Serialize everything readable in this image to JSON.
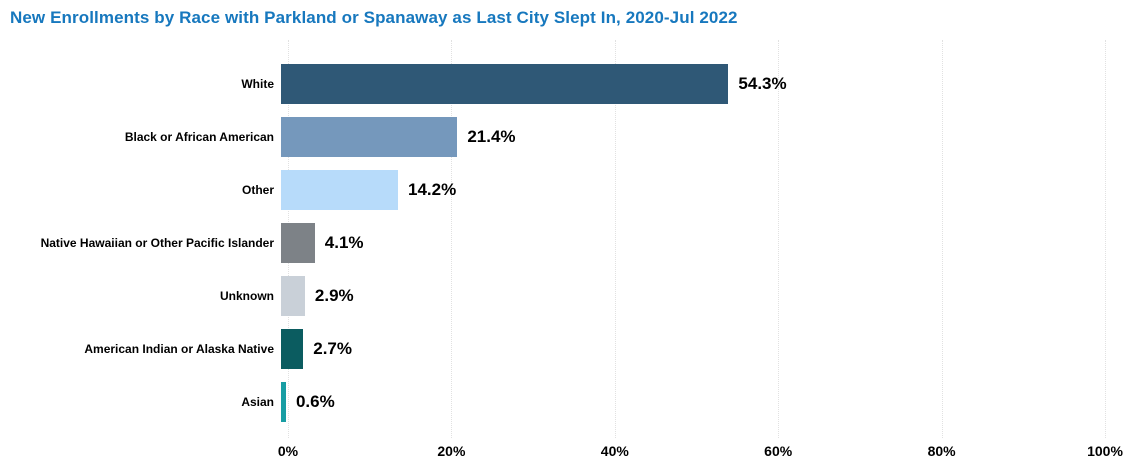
{
  "title": "New Enrollments by Race with Parkland or Spanaway as Last City Slept In, 2020-Jul 2022",
  "title_color": "#1778be",
  "chart_data": {
    "type": "bar",
    "orientation": "horizontal",
    "title": "New Enrollments by Race with Parkland or Spanaway as Last City Slept In, 2020-Jul 2022",
    "categories": [
      "White",
      "Black or African American",
      "Other",
      "Native Hawaiian or Other Pacific Islander",
      "Unknown",
      "American Indian or Alaska Native",
      "Asian"
    ],
    "values": [
      54.3,
      21.4,
      14.2,
      4.1,
      2.9,
      2.7,
      0.6
    ],
    "value_labels": [
      "54.3%",
      "21.4%",
      "14.2%",
      "4.1%",
      "2.9%",
      "2.7%",
      "0.6%"
    ],
    "bar_colors": [
      "#2f5876",
      "#7598bc",
      "#b7dbfa",
      "#7d8287",
      "#c9d0d8",
      "#0b5c60",
      "#189ea4"
    ],
    "xlabel": "",
    "ylabel": "",
    "xlim": [
      0,
      100
    ],
    "x_ticks": [
      0,
      20,
      40,
      60,
      80,
      100
    ],
    "x_tick_labels": [
      "0%",
      "20%",
      "40%",
      "60%",
      "80%",
      "100%"
    ],
    "grid": "vertical-dotted",
    "gridline_color": "#e1e1e1",
    "legend": "none"
  }
}
